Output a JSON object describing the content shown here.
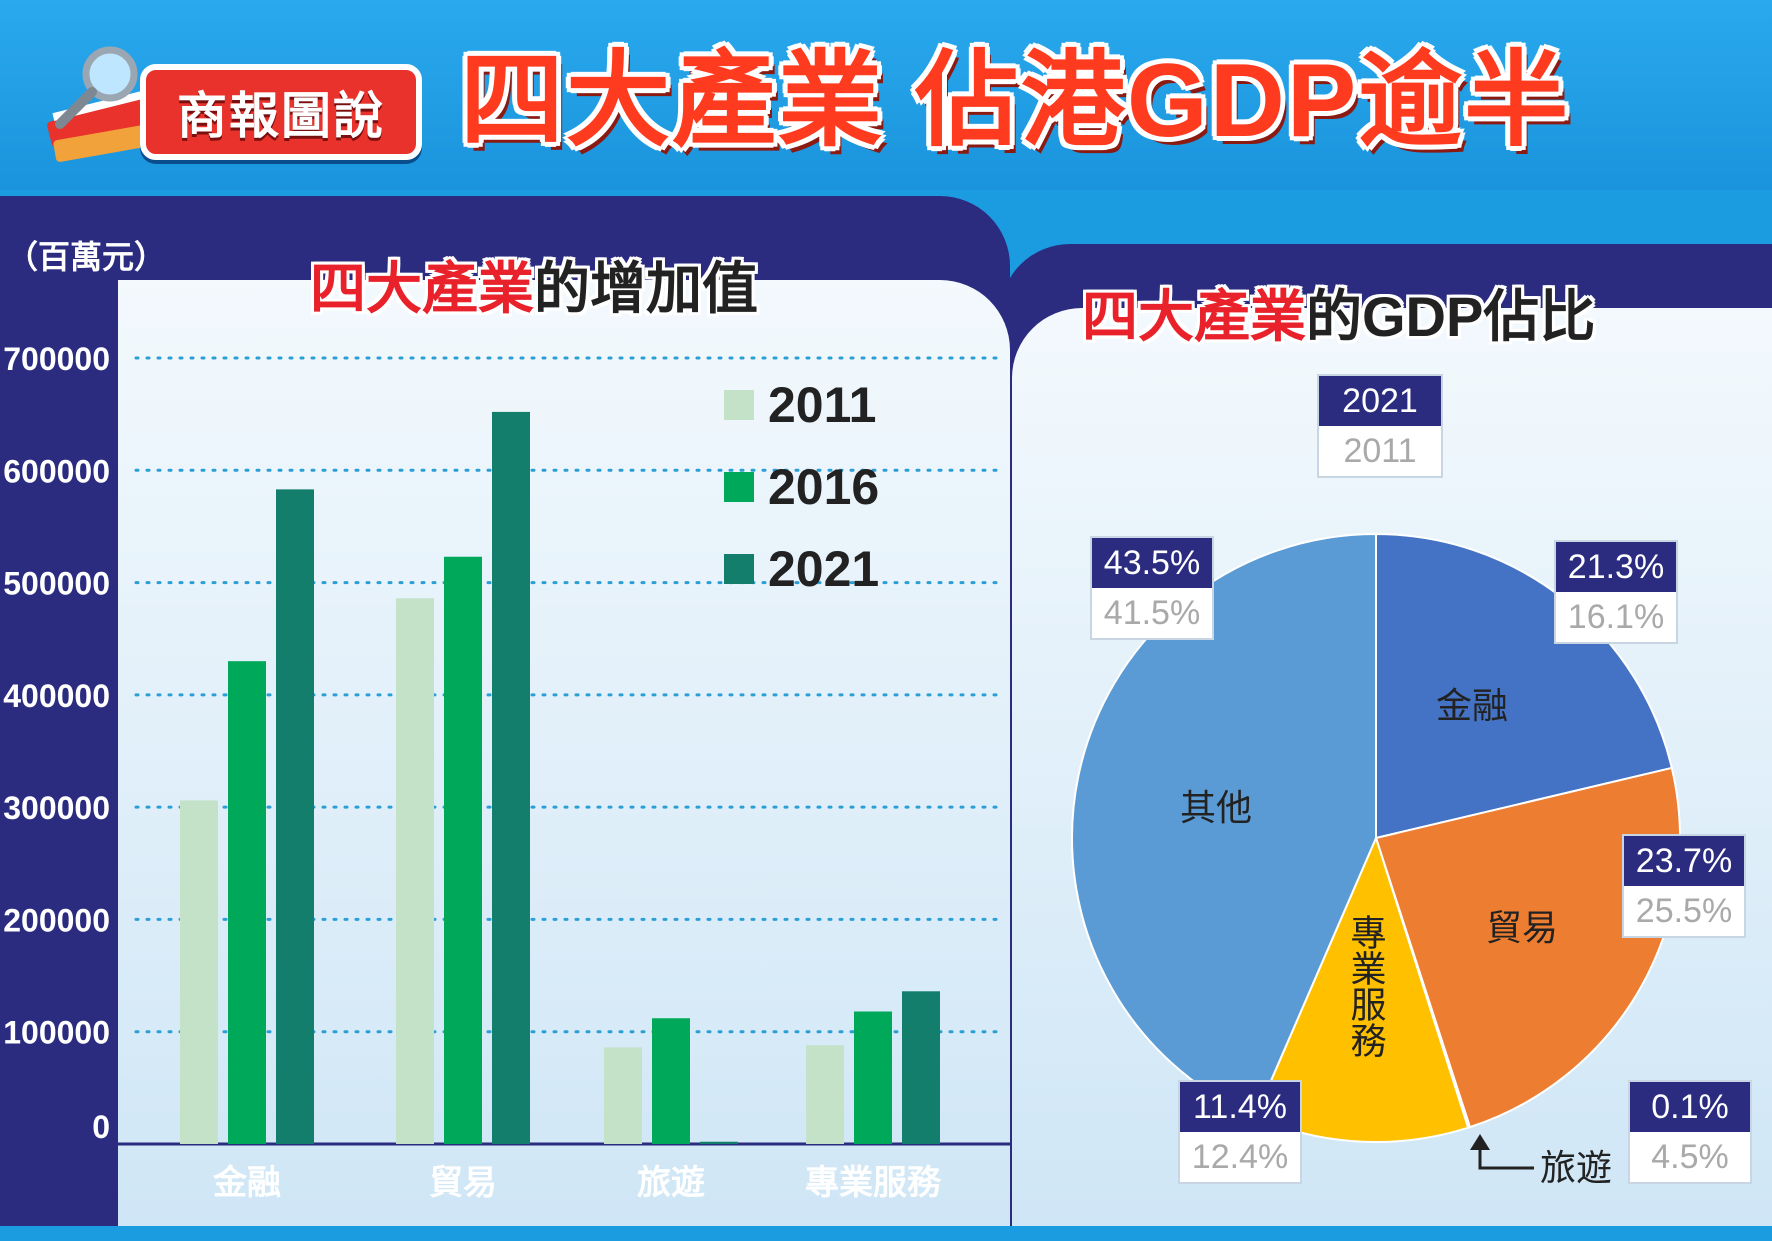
{
  "header": {
    "logo_text": "商報圖說",
    "title": "四大產業 佔港GDP逾半"
  },
  "bar_panel": {
    "unit_label": "（百萬元）",
    "title_red": "四大產業",
    "title_rest": "的增加值"
  },
  "pie_panel": {
    "title_red": "四大產業",
    "title_rest": "的GDP佔比",
    "legend_top": "2021",
    "legend_bottom": "2011",
    "tourism_pointer_label": "旅遊"
  },
  "colors": {
    "c2011": "#c3e2c8",
    "c2016": "#00a85a",
    "c2021": "#127e6b",
    "finance": "#4472c4",
    "trade": "#ed7d31",
    "professional": "#ffc000",
    "tourism": "#ffc000",
    "others": "#5b9bd5",
    "navy": "#2b2c7f"
  },
  "chart_data": [
    {
      "type": "bar",
      "title": "四大產業的增加值",
      "ylabel": "（百萬元）",
      "ylim": [
        0,
        700000
      ],
      "yticks": [
        "0",
        "100000",
        "200000",
        "300000",
        "400000",
        "500000",
        "600000",
        "700000"
      ],
      "categories": [
        "金融",
        "貿易",
        "旅遊",
        "專業服務"
      ],
      "series": [
        {
          "name": "2011",
          "values": [
            306000,
            486000,
            86000,
            88000
          ]
        },
        {
          "name": "2016",
          "values": [
            430000,
            523000,
            112000,
            118000
          ]
        },
        {
          "name": "2021",
          "values": [
            583000,
            652000,
            2000,
            136000
          ]
        }
      ],
      "legend_position": "top-right",
      "grid": true
    },
    {
      "type": "pie",
      "title": "四大產業的GDP佔比",
      "slices": [
        {
          "name": "金融",
          "v2021": 21.3,
          "p2021": "21.3%",
          "p2011": "16.1%"
        },
        {
          "name": "貿易",
          "v2021": 23.7,
          "p2021": "23.7%",
          "p2011": "25.5%"
        },
        {
          "name": "旅遊",
          "v2021": 0.1,
          "p2021": "0.1%",
          "p2011": "4.5%"
        },
        {
          "name": "專業服務",
          "v2021": 11.4,
          "p2021": "11.4%",
          "p2011": "12.4%"
        },
        {
          "name": "其他",
          "v2021": 43.5,
          "p2021": "43.5%",
          "p2011": "41.5%"
        }
      ]
    }
  ]
}
